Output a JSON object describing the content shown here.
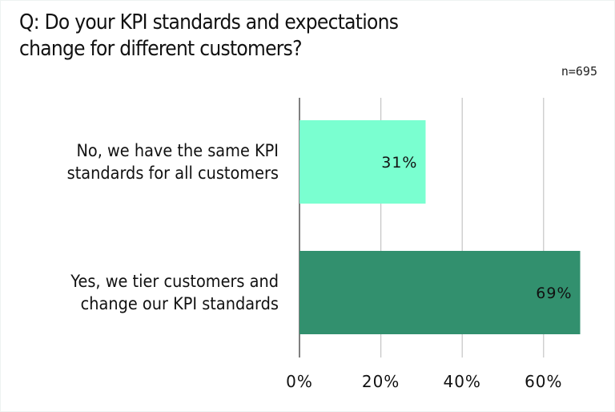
{
  "chart_data": {
    "type": "bar",
    "orientation": "horizontal",
    "title": "Q: Do your KPI standards and expectations change for different customers?",
    "annotation": "n=695",
    "categories": [
      "No, we have the same KPI standards for all customers",
      "Yes, we tier customers and change our KPI standards"
    ],
    "values": [
      31,
      69
    ],
    "data_labels": [
      "31%",
      "69%"
    ],
    "colors": [
      "#7affd0",
      "#32906e"
    ],
    "xlim": [
      0,
      70
    ],
    "xticks": [
      0,
      20,
      40,
      60
    ],
    "xtick_labels": [
      "0%",
      "20%",
      "40%",
      "60%"
    ],
    "grid": true,
    "xlabel": "",
    "ylabel": ""
  }
}
